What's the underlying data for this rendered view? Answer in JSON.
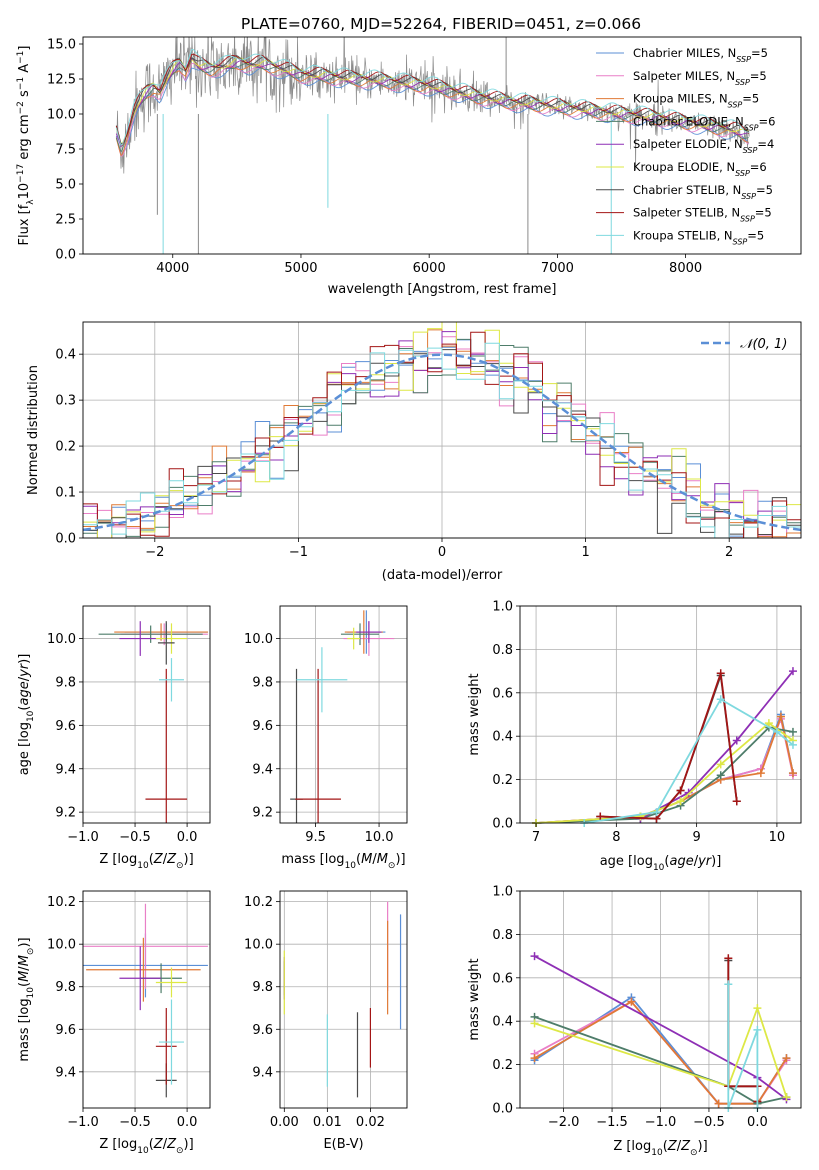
{
  "title": "PLATE=0760, MJD=52264, FIBERID=0451, z=0.066",
  "colors": {
    "Chabrier MILES": "#5b8fd6",
    "Salpeter MILES": "#e97fc7",
    "Kroupa MILES": "#e07a36",
    "Chabrier ELODIE": "#4e7d6a",
    "Salpeter ELODIE": "#8e2fb5",
    "Kroupa ELODIE": "#dde846",
    "Chabrier STELIB": "#4a4a4a",
    "Salpeter STELIB": "#a31515",
    "Kroupa STELIB": "#7fd9df",
    "data": "#8a8a8a",
    "gauss": "#5b8fd6",
    "grid": "#b0b0b0"
  },
  "chart_data": [
    {
      "id": "spectrum",
      "type": "line",
      "title": "PLATE=0760, MJD=52264, FIBERID=0451, z=0.066",
      "xlabel": "wavelength [Angstrom, rest frame]",
      "ylabel": "Flux [fλ10⁻¹⁷ erg cm⁻² s⁻¹ A⁻¹]",
      "xlim": [
        3300,
        8900
      ],
      "ylim": [
        0,
        15.5
      ],
      "xticks": [
        4000,
        5000,
        6000,
        7000,
        8000
      ],
      "yticks": [
        0.0,
        2.5,
        5.0,
        7.5,
        10.0,
        12.5,
        15.0
      ],
      "grid": false,
      "legend_position": "top-right",
      "legend": [
        {
          "label": "Chabrier MILES, N",
          "sub": "SSP",
          "tail": "=5"
        },
        {
          "label": "Salpeter MILES, N",
          "sub": "SSP",
          "tail": "=5"
        },
        {
          "label": "Kroupa MILES, N",
          "sub": "SSP",
          "tail": "=5"
        },
        {
          "label": "Chabrier ELODIE, N",
          "sub": "SSP",
          "tail": "=6"
        },
        {
          "label": "Salpeter ELODIE, N",
          "sub": "SSP",
          "tail": "=4"
        },
        {
          "label": "Kroupa ELODIE, N",
          "sub": "SSP",
          "tail": "=6"
        },
        {
          "label": "Chabrier STELIB, N",
          "sub": "SSP",
          "tail": "=5"
        },
        {
          "label": "Salpeter STELIB, N",
          "sub": "SSP",
          "tail": "=5"
        },
        {
          "label": "Kroupa STELIB, N",
          "sub": "SSP",
          "tail": "=5"
        }
      ],
      "model_x": [
        3550,
        3600,
        3650,
        3700,
        3750,
        3800,
        3850,
        3900,
        3950,
        4000,
        4050,
        4100,
        4150,
        4200,
        4300,
        4400,
        4500,
        4600,
        4700,
        4800,
        4900,
        5000,
        5200,
        5400,
        5600,
        5800,
        6000,
        6200,
        6400,
        6600,
        6800,
        7000,
        7200,
        7400,
        7600,
        7800,
        8000,
        8200,
        8400,
        8500
      ],
      "model_y": [
        9.0,
        7.4,
        8.6,
        10.2,
        11.0,
        11.6,
        11.9,
        11.5,
        12.4,
        13.2,
        13.6,
        13.0,
        14.0,
        13.5,
        13.2,
        13.4,
        13.7,
        13.5,
        13.6,
        13.3,
        13.1,
        12.8,
        12.7,
        12.5,
        12.4,
        12.2,
        12.0,
        11.6,
        11.2,
        10.9,
        10.7,
        10.5,
        10.3,
        10.1,
        9.9,
        9.7,
        9.4,
        9.1,
        8.8,
        8.4
      ]
    },
    {
      "id": "residuals",
      "type": "line",
      "xlabel": "(data-model)/error",
      "ylabel": "Normed distribution",
      "xlim": [
        -2.5,
        2.5
      ],
      "ylim": [
        0,
        0.47
      ],
      "xticks": [
        -2,
        -1,
        0,
        1,
        2
      ],
      "yticks": [
        0.0,
        0.1,
        0.2,
        0.3,
        0.4
      ],
      "grid": true,
      "legend_position": "top-right",
      "legend": [
        "𝒩(0, 1)"
      ],
      "bin_width": 0.1,
      "gaussian": {
        "mu": 0,
        "sigma": 1
      }
    },
    {
      "id": "age-vs-Z",
      "type": "scatter",
      "xlabel": "Z [log₁₀(Z/Z⊙)]",
      "ylabel": "age  [log₁₀(age/yr)]",
      "xlim": [
        -1.0,
        0.22
      ],
      "ylim": [
        9.15,
        10.15
      ],
      "xticks": [
        -1.0,
        -0.5,
        0.0
      ],
      "yticks": [
        9.2,
        9.4,
        9.6,
        9.8,
        10.0
      ],
      "grid": true,
      "points": [
        {
          "model": "Chabrier MILES",
          "x": -0.2,
          "xerr": 0.4,
          "y": 10.03,
          "yerr": 0.04
        },
        {
          "model": "Salpeter MILES",
          "x": -0.22,
          "xerr": 0.42,
          "y": 10.02,
          "yerr": 0.05
        },
        {
          "model": "Kroupa MILES",
          "x": -0.25,
          "xerr": 0.45,
          "y": 10.03,
          "yerr": 0.04
        },
        {
          "model": "Chabrier ELODIE",
          "x": -0.35,
          "xerr": 0.5,
          "y": 10.02,
          "yerr": 0.04
        },
        {
          "model": "Salpeter ELODIE",
          "x": -0.45,
          "xerr": 0.2,
          "y": 10.0,
          "yerr": 0.08
        },
        {
          "model": "Kroupa ELODIE",
          "x": -0.15,
          "xerr": 0.15,
          "y": 10.0,
          "yerr": 0.07
        },
        {
          "model": "Chabrier STELIB",
          "x": -0.2,
          "xerr": 0.08,
          "y": 9.98,
          "yerr": 0.1
        },
        {
          "model": "Salpeter STELIB",
          "x": -0.2,
          "xerr": 0.2,
          "y": 9.26,
          "yerr": 0.6
        },
        {
          "model": "Kroupa STELIB",
          "x": -0.15,
          "xerr": 0.12,
          "y": 9.81,
          "yerr": 0.1
        }
      ]
    },
    {
      "id": "age-vs-mass",
      "type": "scatter",
      "xlabel": "mass [log₁₀(M/M⊙)]",
      "ylabel": "",
      "xlim": [
        9.22,
        10.22
      ],
      "ylim": [
        9.15,
        10.15
      ],
      "xticks": [
        9.5,
        10.0
      ],
      "yticks": [
        9.2,
        9.4,
        9.6,
        9.8,
        10.0
      ],
      "grid": true,
      "points": [
        {
          "model": "Chabrier MILES",
          "x": 9.9,
          "xerr": 0.15,
          "y": 10.03,
          "yerr": 0.1
        },
        {
          "model": "Salpeter MILES",
          "x": 9.92,
          "xerr": 0.2,
          "y": 10.0,
          "yerr": 0.08
        },
        {
          "model": "Kroupa MILES",
          "x": 9.88,
          "xerr": 0.15,
          "y": 10.03,
          "yerr": 0.1
        },
        {
          "model": "Chabrier ELODIE",
          "x": 9.85,
          "xerr": 0.15,
          "y": 10.02,
          "yerr": 0.05
        },
        {
          "model": "Salpeter ELODIE",
          "x": 9.92,
          "xerr": 0.1,
          "y": 10.03,
          "yerr": 0.05
        },
        {
          "model": "Kroupa ELODIE",
          "x": 9.8,
          "xerr": 0.05,
          "y": 10.0,
          "yerr": 0.05
        },
        {
          "model": "Chabrier STELIB",
          "x": 9.35,
          "xerr": 0.05,
          "y": 9.26,
          "yerr": 0.6
        },
        {
          "model": "Salpeter STELIB",
          "x": 9.52,
          "xerr": 0.18,
          "y": 9.26,
          "yerr": 0.6
        },
        {
          "model": "Kroupa STELIB",
          "x": 9.55,
          "xerr": 0.2,
          "y": 9.81,
          "yerr": 0.15
        }
      ]
    },
    {
      "id": "mass-weight-vs-age",
      "type": "line",
      "xlabel": "age  [log₁₀(age/yr)]",
      "ylabel": "mass weight",
      "xlim": [
        6.8,
        10.3
      ],
      "ylim": [
        0,
        1.0
      ],
      "xticks": [
        7,
        8,
        9,
        10
      ],
      "yticks": [
        0.0,
        0.2,
        0.4,
        0.6,
        0.8,
        1.0
      ],
      "grid": true,
      "series": [
        {
          "model": "Chabrier MILES",
          "x": [
            7.0,
            8.3,
            8.8,
            9.3,
            9.8,
            10.05,
            10.2
          ],
          "y": [
            0.0,
            0.03,
            0.1,
            0.2,
            0.25,
            0.5,
            0.23
          ]
        },
        {
          "model": "Salpeter MILES",
          "x": [
            7.0,
            8.3,
            8.8,
            9.3,
            9.8,
            10.05,
            10.2
          ],
          "y": [
            0.0,
            0.03,
            0.1,
            0.2,
            0.25,
            0.48,
            0.22
          ]
        },
        {
          "model": "Kroupa MILES",
          "x": [
            7.0,
            8.3,
            8.8,
            9.3,
            9.8,
            10.05,
            10.2
          ],
          "y": [
            0.0,
            0.03,
            0.1,
            0.2,
            0.23,
            0.49,
            0.23
          ]
        },
        {
          "model": "Chabrier ELODIE",
          "x": [
            7.0,
            8.3,
            8.8,
            9.3,
            9.9,
            10.2
          ],
          "y": [
            0.0,
            0.02,
            0.08,
            0.22,
            0.44,
            0.42
          ]
        },
        {
          "model": "Salpeter ELODIE",
          "x": [
            8.3,
            8.9,
            9.5,
            10.2
          ],
          "y": [
            0.02,
            0.14,
            0.38,
            0.7
          ]
        },
        {
          "model": "Kroupa ELODIE",
          "x": [
            7.0,
            8.3,
            8.8,
            9.3,
            9.9,
            10.2
          ],
          "y": [
            0.0,
            0.03,
            0.1,
            0.27,
            0.46,
            0.38
          ]
        },
        {
          "model": "Chabrier STELIB",
          "x": [
            7.8,
            8.5,
            8.8,
            9.3,
            9.5
          ],
          "y": [
            0.03,
            0.02,
            0.15,
            0.68,
            0.1
          ]
        },
        {
          "model": "Salpeter STELIB",
          "x": [
            7.8,
            8.5,
            8.8,
            9.3,
            9.5
          ],
          "y": [
            0.03,
            0.02,
            0.15,
            0.69,
            0.1
          ]
        },
        {
          "model": "Kroupa STELIB",
          "x": [
            7.6,
            8.5,
            9.3,
            10.0,
            10.2
          ],
          "y": [
            0.0,
            0.05,
            0.57,
            0.42,
            0.36
          ]
        }
      ]
    },
    {
      "id": "mass-vs-Z",
      "type": "scatter",
      "xlabel": "Z [log₁₀(Z/Z⊙)]",
      "ylabel": "mass [log₁₀(M/M⊙)]",
      "xlim": [
        -1.0,
        0.22
      ],
      "ylim": [
        9.23,
        10.25
      ],
      "xticks": [
        -1.0,
        -0.5,
        0.0
      ],
      "yticks": [
        9.4,
        9.6,
        9.8,
        10.0,
        10.2
      ],
      "grid": true,
      "points": [
        {
          "model": "Chabrier MILES",
          "x": -0.4,
          "xerr": 0.6,
          "y": 9.9,
          "yerr": 0.15
        },
        {
          "model": "Salpeter MILES",
          "x": -0.4,
          "xerr": 0.6,
          "y": 9.99,
          "yerr": 0.2
        },
        {
          "model": "Kroupa MILES",
          "x": -0.42,
          "xerr": 0.55,
          "y": 9.88,
          "yerr": 0.15
        },
        {
          "model": "Chabrier ELODIE",
          "x": -0.25,
          "xerr": 0.2,
          "y": 9.84,
          "yerr": 0.07
        },
        {
          "model": "Salpeter ELODIE",
          "x": -0.45,
          "xerr": 0.2,
          "y": 9.84,
          "yerr": 0.15
        },
        {
          "model": "Kroupa ELODIE",
          "x": -0.15,
          "xerr": 0.15,
          "y": 9.82,
          "yerr": 0.07
        },
        {
          "model": "Chabrier STELIB",
          "x": -0.2,
          "xerr": 0.1,
          "y": 9.36,
          "yerr": 0.08
        },
        {
          "model": "Salpeter STELIB",
          "x": -0.2,
          "xerr": 0.1,
          "y": 9.52,
          "yerr": 0.18
        },
        {
          "model": "Kroupa STELIB",
          "x": -0.15,
          "xerr": 0.12,
          "y": 9.54,
          "yerr": 0.2
        }
      ]
    },
    {
      "id": "mass-vs-EBV",
      "type": "scatter",
      "xlabel": "E(B-V)",
      "ylabel": "",
      "xlim": [
        -0.001,
        0.0285
      ],
      "ylim": [
        9.23,
        10.25
      ],
      "xticks": [
        0.0,
        0.01,
        0.02
      ],
      "yticks": [
        9.4,
        9.6,
        9.8,
        10.0,
        10.2
      ],
      "grid": true,
      "points": [
        {
          "model": "Chabrier MILES",
          "x": 0.027,
          "y": 9.87,
          "yerr": 0.27
        },
        {
          "model": "Salpeter MILES",
          "x": 0.024,
          "y": 9.99,
          "yerr": 0.21
        },
        {
          "model": "Kroupa MILES",
          "x": 0.024,
          "y": 9.89,
          "yerr": 0.22
        },
        {
          "model": "Chabrier ELODIE",
          "x": 0.0,
          "y": 9.84,
          "yerr": 0.08
        },
        {
          "model": "Salpeter ELODIE",
          "x": 0.0,
          "y": 9.84,
          "yerr": 0.1
        },
        {
          "model": "Kroupa ELODIE",
          "x": 0.0,
          "y": 9.82,
          "yerr": 0.15
        },
        {
          "model": "Chabrier STELIB",
          "x": 0.017,
          "y": 9.48,
          "yerr": 0.2
        },
        {
          "model": "Salpeter STELIB",
          "x": 0.02,
          "y": 9.56,
          "yerr": 0.14
        },
        {
          "model": "Kroupa STELIB",
          "x": 0.01,
          "y": 9.5,
          "yerr": 0.17
        }
      ]
    },
    {
      "id": "mass-weight-vs-Z",
      "type": "line",
      "xlabel": "Z [log₁₀(Z/Z⊙)]",
      "ylabel": "mass weight",
      "xlim": [
        -2.45,
        0.45
      ],
      "ylim": [
        0,
        1.0
      ],
      "xticks": [
        -2.0,
        -1.5,
        -1.0,
        -0.5,
        0.0
      ],
      "yticks": [
        0.0,
        0.2,
        0.4,
        0.6,
        0.8,
        1.0
      ],
      "grid": true,
      "series": [
        {
          "model": "Chabrier MILES",
          "x": [
            -2.3,
            -1.3,
            -0.4,
            0.0,
            0.3
          ],
          "y": [
            0.22,
            0.51,
            0.02,
            0.02,
            0.23
          ]
        },
        {
          "model": "Salpeter MILES",
          "x": [
            -2.3,
            -1.3,
            -0.4,
            0.0,
            0.3
          ],
          "y": [
            0.25,
            0.49,
            0.02,
            0.02,
            0.22
          ]
        },
        {
          "model": "Kroupa MILES",
          "x": [
            -2.3,
            -1.3,
            -0.4,
            0.0,
            0.3
          ],
          "y": [
            0.23,
            0.49,
            0.02,
            0.02,
            0.23
          ]
        },
        {
          "model": "Chabrier ELODIE",
          "x": [
            -2.3,
            -0.3,
            0.0,
            0.3
          ],
          "y": [
            0.42,
            0.1,
            0.02,
            0.05
          ]
        },
        {
          "model": "Salpeter ELODIE",
          "x": [
            -2.3,
            0.0,
            0.3
          ],
          "y": [
            0.7,
            0.14,
            0.04
          ]
        },
        {
          "model": "Kroupa ELODIE",
          "x": [
            -2.3,
            -0.3,
            0.0,
            0.3
          ],
          "y": [
            0.39,
            0.1,
            0.46,
            0.05
          ]
        },
        {
          "model": "Chabrier STELIB",
          "x": [
            -0.3,
            -0.3,
            0.0,
            0.0
          ],
          "y": [
            0.68,
            0.1,
            0.1,
            0.03
          ]
        },
        {
          "model": "Salpeter STELIB",
          "x": [
            -0.3,
            -0.3,
            0.0,
            0.0
          ],
          "y": [
            0.69,
            0.1,
            0.1,
            0.03
          ]
        },
        {
          "model": "Kroupa STELIB",
          "x": [
            -0.3,
            -0.3,
            0.0,
            0.0
          ],
          "y": [
            0.57,
            0.0,
            0.36,
            0.0
          ]
        }
      ]
    }
  ]
}
